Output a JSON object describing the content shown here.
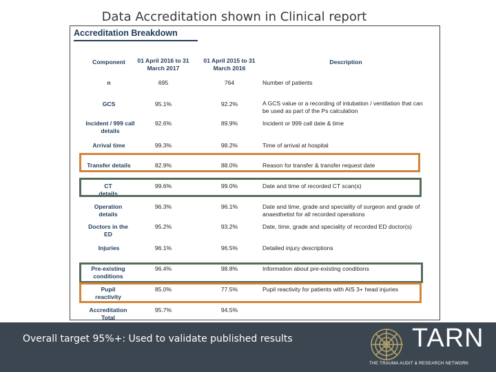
{
  "slide": {
    "title": "Data Accreditation shown in Clinical report",
    "footer_text": "Overall target 95%+: Used to validate published results"
  },
  "logo": {
    "word": "TARN",
    "tagline": "THE TRAUMA AUDIT & RESEARCH NETWORK",
    "color": "#b5a26a"
  },
  "report": {
    "heading": "Accreditation Breakdown",
    "columns": [
      "Component",
      "01 April 2016 to 31 March 2017",
      "01 April 2015 to 31 March 2016",
      "Description"
    ],
    "rows": [
      {
        "component": "n",
        "v2017": "695",
        "v2016": "764",
        "description": "Number of patients"
      },
      {
        "component": "GCS",
        "v2017": "95.1%",
        "v2016": "92.2%",
        "description": "A GCS value or a recording of intubation / ventilation that can be used as part of the Ps calculation"
      },
      {
        "component": "Incident / 999 call details",
        "v2017": "92.6%",
        "v2016": "89.9%",
        "description": "Incident or 999 call date & time"
      },
      {
        "component": "Arrival time",
        "v2017": "99.3%",
        "v2016": "98.2%",
        "description": "Time of arrival at hospital"
      },
      {
        "component": "Transfer details",
        "v2017": "82.9%",
        "v2016": "88.0%",
        "description": "Reason for transfer & transfer request date"
      },
      {
        "component": "CT details",
        "v2017": "99.6%",
        "v2016": "99.0%",
        "description": "Date and time of recorded CT scan(s)"
      },
      {
        "component": "Operation details",
        "v2017": "96.3%",
        "v2016": "96.1%",
        "description": "Date and time, grade and speciality of surgeon and grade of anaesthetist for all recorded operations"
      },
      {
        "component": "Doctors in the ED",
        "v2017": "95.2%",
        "v2016": "93.2%",
        "description": "Date, time, grade and speciality of recorded ED doctor(s)"
      },
      {
        "component": "Injuries",
        "v2017": "96.1%",
        "v2016": "96.5%",
        "description": "Detailed injury descriptions"
      },
      {
        "component": "Pre-existing conditions",
        "v2017": "96.4%",
        "v2016": "98.8%",
        "description": "Information about pre-existing conditions"
      },
      {
        "component": "Pupil reactivity",
        "v2017": "85.0%",
        "v2016": "77.5%",
        "description": "Pupil reactivity for patients with AIS 3+ head injuries"
      },
      {
        "component": "Accreditation Total",
        "v2017": "95.7%",
        "v2016": "94.5%",
        "description": ""
      }
    ]
  },
  "highlight_colors": {
    "orange": "#d1853a",
    "green": "#556b5a"
  }
}
